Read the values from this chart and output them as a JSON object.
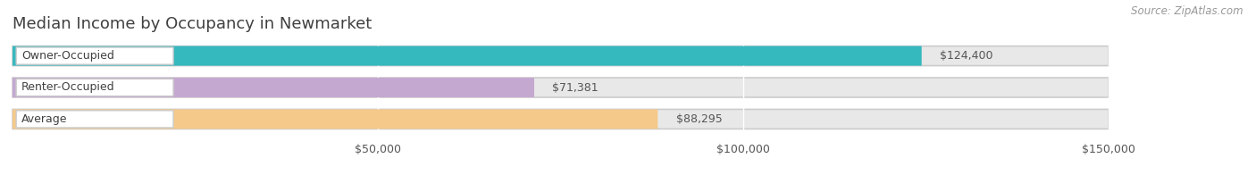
{
  "title": "Median Income by Occupancy in Newmarket",
  "source": "Source: ZipAtlas.com",
  "categories": [
    "Owner-Occupied",
    "Renter-Occupied",
    "Average"
  ],
  "values": [
    124400,
    71381,
    88295
  ],
  "bar_colors": [
    "#35b8be",
    "#c4a8d0",
    "#f5c98a"
  ],
  "bar_labels": [
    "$124,400",
    "$71,381",
    "$88,295"
  ],
  "xlim": [
    0,
    165000
  ],
  "data_max": 150000,
  "xticks": [
    50000,
    100000,
    150000
  ],
  "xtick_labels": [
    "$50,000",
    "$100,000",
    "$150,000"
  ],
  "background_color": "#ffffff",
  "bar_track_color": "#e8e8e8",
  "title_color": "#404040",
  "label_color": "#555555",
  "source_color": "#999999",
  "title_fontsize": 13,
  "label_fontsize": 9,
  "source_fontsize": 8.5,
  "bar_height": 0.62
}
